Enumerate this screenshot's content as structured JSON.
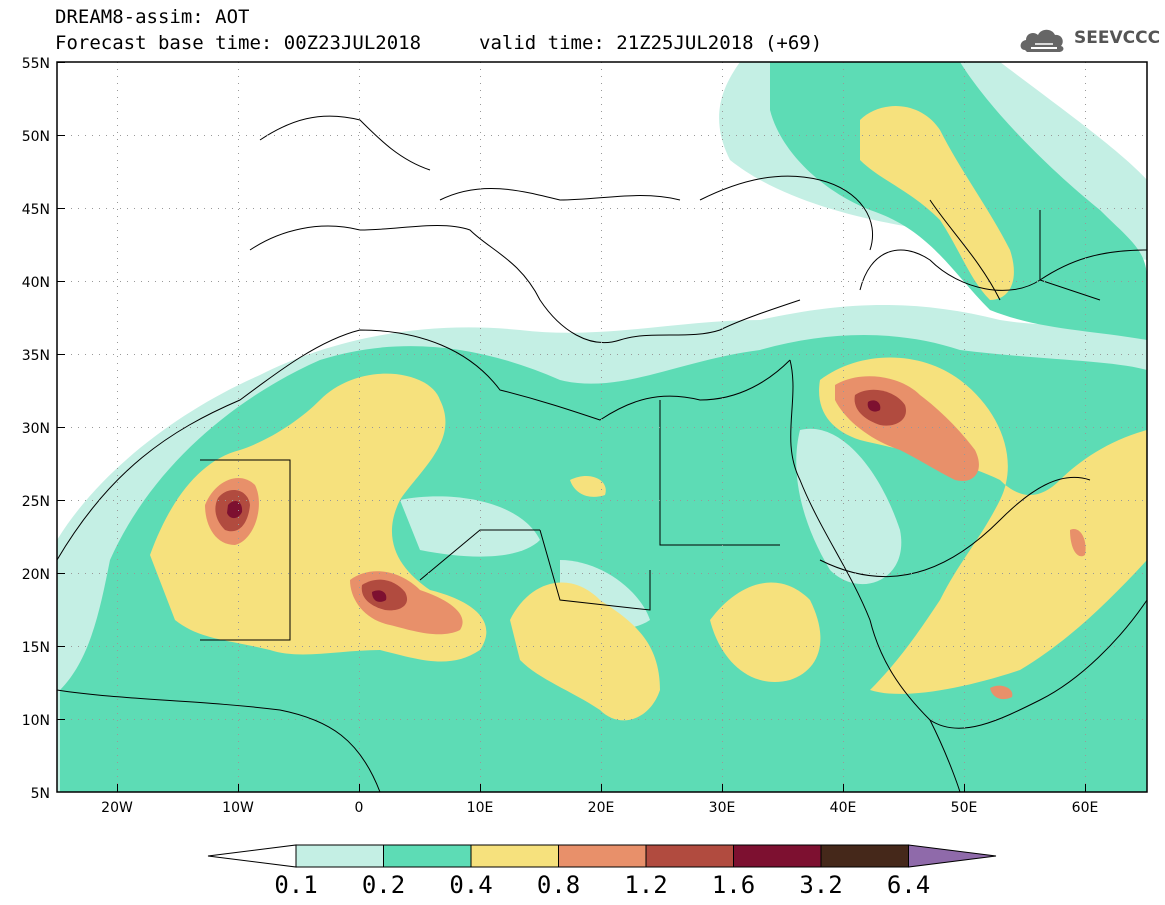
{
  "header": {
    "title": "DREAM8-assim: AOT",
    "base_time": "Forecast base time: 00Z23JUL2018",
    "valid_time": "valid time: 21Z25JUL2018 (+69)"
  },
  "logo": {
    "text": "SEEVCCC",
    "icon": "cloud-icon"
  },
  "map": {
    "lat_labels": [
      "55N",
      "50N",
      "45N",
      "40N",
      "35N",
      "30N",
      "25N",
      "20N",
      "15N",
      "10N",
      "5N"
    ],
    "lon_labels": [
      "20W",
      "10W",
      "0",
      "10E",
      "20E",
      "30E",
      "40E",
      "50E",
      "60E"
    ],
    "projection": "lat-lon",
    "grid": "dotted"
  },
  "colorbar": {
    "levels": [
      "0.1",
      "0.2",
      "0.4",
      "0.8",
      "1.2",
      "1.6",
      "3.2",
      "6.4"
    ],
    "colors": [
      "#ffffff",
      "#c4efe4",
      "#5ddcb5",
      "#f6e17d",
      "#e8906a",
      "#b14b3f",
      "#7d1030",
      "#45281a",
      "#8f6aaa"
    ]
  }
}
